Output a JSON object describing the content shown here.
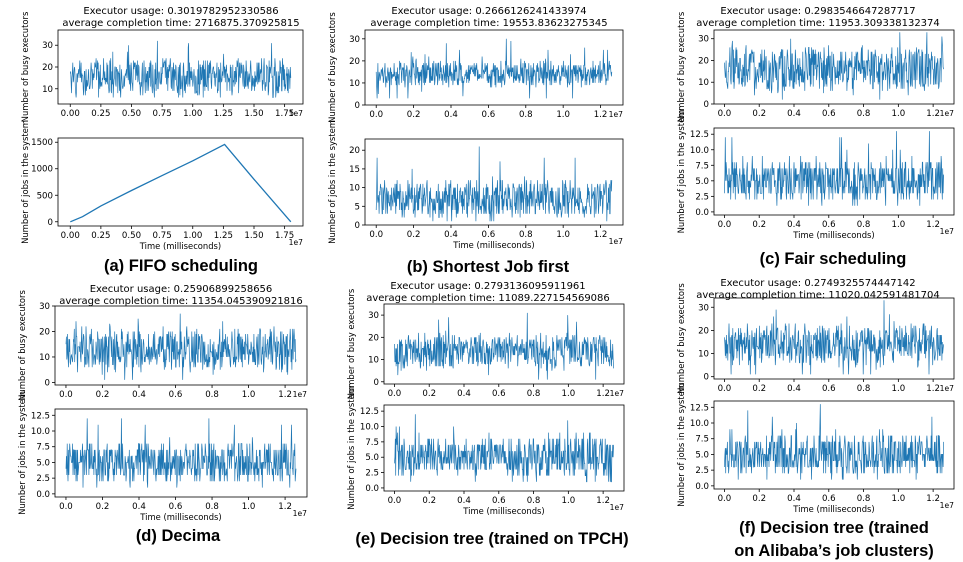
{
  "chart_data": [
    {
      "id": "a",
      "type": "line",
      "caption": "(a) FIFO scheduling",
      "title_line1": "Executor usage: 0.3019782952330586",
      "title_line2": "average completion time: 2716875.370925815",
      "x_multiplier": "1e7",
      "xlim": [
        -0.1,
        1.9
      ],
      "top": {
        "ylabel": "Number of busy executors",
        "ylim": [
          3,
          37
        ],
        "yticks": [
          10,
          20,
          30
        ],
        "xticks": [
          0.0,
          0.25,
          0.5,
          0.75,
          1.0,
          1.25,
          1.5,
          1.75
        ],
        "xtick_labels": [
          "0.00",
          "0.25",
          "0.50",
          "0.75",
          "1.00",
          "1.25",
          "1.50",
          "1.75"
        ],
        "series": [
          {
            "x_range": [
              0.0,
              1.8
            ],
            "mean": 15,
            "spread": 10,
            "min": 6,
            "max": 35
          }
        ]
      },
      "bottom": {
        "ylabel": "Number of jobs in the system",
        "xlabel": "Time (milliseconds)",
        "ylim": [
          -80,
          1580
        ],
        "yticks": [
          0,
          500,
          1000,
          1500
        ],
        "xticks": [
          0.0,
          0.25,
          0.5,
          0.75,
          1.0,
          1.25,
          1.5,
          1.75
        ],
        "xtick_labels": [
          "0.00",
          "0.25",
          "0.50",
          "0.75",
          "1.00",
          "1.25",
          "1.50",
          "1.75"
        ],
        "series": [
          {
            "points": [
              [
                0.0,
                0
              ],
              [
                0.1,
                95
              ],
              [
                0.25,
                300
              ],
              [
                0.5,
                590
              ],
              [
                0.75,
                870
              ],
              [
                1.0,
                1150
              ],
              [
                1.26,
                1460
              ],
              [
                1.5,
                800
              ],
              [
                1.8,
                0
              ]
            ]
          }
        ]
      }
    },
    {
      "id": "b",
      "type": "line",
      "caption": "(b) Shortest Job first",
      "title_line1": "Executor usage: 0.2666126241433974",
      "title_line2": "average completion time: 19553.83623275345",
      "x_multiplier": "1e7",
      "xlim": [
        -0.06,
        1.32
      ],
      "top": {
        "ylabel": "Number of busy executors",
        "ylim": [
          0,
          34
        ],
        "yticks": [
          0,
          10,
          20,
          30
        ],
        "xticks": [
          0.0,
          0.2,
          0.4,
          0.6,
          0.8,
          1.0,
          1.2
        ],
        "xtick_labels": [
          "0.0",
          "0.2",
          "0.4",
          "0.6",
          "0.8",
          "1.0",
          "1.2"
        ],
        "series": [
          {
            "x_range": [
              0.0,
              1.26
            ],
            "mean": 14,
            "spread": 7,
            "min": 3,
            "max": 32
          }
        ]
      },
      "bottom": {
        "ylabel": "Number of jobs in the system",
        "xlabel": "Time (milliseconds)",
        "ylim": [
          0,
          23
        ],
        "yticks": [
          0,
          5,
          10,
          15,
          20
        ],
        "xticks": [
          0.0,
          0.2,
          0.4,
          0.6,
          0.8,
          1.0,
          1.2
        ],
        "xtick_labels": [
          "0.0",
          "0.2",
          "0.4",
          "0.6",
          "0.8",
          "1.0",
          "1.2"
        ],
        "series": [
          {
            "x_range": [
              0.0,
              1.26
            ],
            "mean": 7,
            "spread": 6,
            "min": 1,
            "max": 22
          }
        ]
      }
    },
    {
      "id": "c",
      "type": "line",
      "caption": "(c) Fair scheduling",
      "title_line1": "Executor usage: 0.2983546647287717",
      "title_line2": "average completion time: 11953.309338132374",
      "x_multiplier": "1e7",
      "xlim": [
        -0.06,
        1.32
      ],
      "top": {
        "ylabel": "Number of busy executors",
        "ylim": [
          0,
          34
        ],
        "yticks": [
          0,
          10,
          20,
          30
        ],
        "xticks": [
          0.0,
          0.2,
          0.4,
          0.6,
          0.8,
          1.0,
          1.2
        ],
        "xtick_labels": [
          "0.0",
          "0.2",
          "0.4",
          "0.6",
          "0.8",
          "1.0",
          "1.2"
        ],
        "series": [
          {
            "x_range": [
              0.0,
              1.26
            ],
            "mean": 16,
            "spread": 12,
            "min": 2,
            "max": 33
          }
        ]
      },
      "bottom": {
        "ylabel": "Number of jobs in the system",
        "xlabel": "Time (milliseconds)",
        "ylim": [
          -0.5,
          13.5
        ],
        "yticks": [
          0.0,
          2.5,
          5.0,
          7.5,
          10.0,
          12.5
        ],
        "ytick_labels": [
          "0.0",
          "2.5",
          "5.0",
          "7.5",
          "10.0",
          "12.5"
        ],
        "xticks": [
          0.0,
          0.2,
          0.4,
          0.6,
          0.8,
          1.0,
          1.2
        ],
        "xtick_labels": [
          "0.0",
          "0.2",
          "0.4",
          "0.6",
          "0.8",
          "1.0",
          "1.2"
        ],
        "series": [
          {
            "x_range": [
              0.0,
              1.26
            ],
            "mean": 5,
            "spread": 4,
            "min": 1,
            "max": 13
          }
        ]
      }
    },
    {
      "id": "d",
      "type": "line",
      "caption": "(d) Decima",
      "title_line1": "Executor usage: 0.25906899258656",
      "title_line2": "average completion time: 11354.045390921816",
      "x_multiplier": "1e7",
      "xlim": [
        -0.06,
        1.32
      ],
      "top": {
        "ylabel": "Number of busy executors",
        "ylim": [
          -1,
          30
        ],
        "yticks": [
          0,
          10,
          20,
          30
        ],
        "xticks": [
          0.0,
          0.2,
          0.4,
          0.6,
          0.8,
          1.0,
          1.2
        ],
        "xtick_labels": [
          "0.0",
          "0.2",
          "0.4",
          "0.6",
          "0.8",
          "1.0",
          "1.2"
        ],
        "series": [
          {
            "x_range": [
              0.0,
              1.26
            ],
            "mean": 13,
            "spread": 10,
            "min": 1,
            "max": 29
          }
        ]
      },
      "bottom": {
        "ylabel": "Number of jobs in the system",
        "xlabel": "Time (milliseconds)",
        "ylim": [
          -0.5,
          13.5
        ],
        "yticks": [
          0.0,
          2.5,
          5.0,
          7.5,
          10.0,
          12.5
        ],
        "ytick_labels": [
          "0.0",
          "2.5",
          "5.0",
          "7.5",
          "10.0",
          "12.5"
        ],
        "xticks": [
          0.0,
          0.2,
          0.4,
          0.6,
          0.8,
          1.0,
          1.2
        ],
        "xtick_labels": [
          "0.0",
          "0.2",
          "0.4",
          "0.6",
          "0.8",
          "1.0",
          "1.2"
        ],
        "series": [
          {
            "x_range": [
              0.0,
              1.26
            ],
            "mean": 5,
            "spread": 4,
            "min": 1,
            "max": 13
          }
        ]
      }
    },
    {
      "id": "e",
      "type": "line",
      "caption": "(e) Decision tree (trained on TPCH)",
      "title_line1": "Executor usage: 0.2793136095911961",
      "title_line2": "average completion time: 11089.227154569086",
      "x_multiplier": "1e7",
      "xlim": [
        -0.06,
        1.32
      ],
      "top": {
        "ylabel": "Number of busy executors",
        "ylim": [
          -1,
          35
        ],
        "yticks": [
          0,
          10,
          20,
          30
        ],
        "xticks": [
          0.0,
          0.2,
          0.4,
          0.6,
          0.8,
          1.0,
          1.2
        ],
        "xtick_labels": [
          "0.0",
          "0.2",
          "0.4",
          "0.6",
          "0.8",
          "1.0",
          "1.2"
        ],
        "series": [
          {
            "x_range": [
              0.0,
              1.26
            ],
            "mean": 14,
            "spread": 10,
            "min": 1,
            "max": 33
          }
        ]
      },
      "bottom": {
        "ylabel": "Number of jobs in the system",
        "xlabel": "Time (milliseconds)",
        "ylim": [
          -0.5,
          13.5
        ],
        "yticks": [
          0.0,
          2.5,
          5.0,
          7.5,
          10.0,
          12.5
        ],
        "ytick_labels": [
          "0.0",
          "2.5",
          "5.0",
          "7.5",
          "10.0",
          "12.5"
        ],
        "xticks": [
          0.0,
          0.2,
          0.4,
          0.6,
          0.8,
          1.0,
          1.2
        ],
        "xtick_labels": [
          "0.0",
          "0.2",
          "0.4",
          "0.6",
          "0.8",
          "1.0",
          "1.2"
        ],
        "series": [
          {
            "x_range": [
              0.0,
              1.26
            ],
            "mean": 5,
            "spread": 4,
            "min": 1,
            "max": 13
          }
        ]
      }
    },
    {
      "id": "f",
      "type": "line",
      "caption": "(f) Decision tree (trained on Alibaba’s job clusters)",
      "caption_line1": "(f) Decision tree (trained",
      "caption_line2": "on Alibaba’s job clusters)",
      "title_line1": "Executor usage: 0.2749325574447142",
      "title_line2": "average completion time: 11020.042591481704",
      "x_multiplier": "1e7",
      "xlim": [
        -0.06,
        1.32
      ],
      "top": {
        "ylabel": "Number of busy executors",
        "ylim": [
          -1,
          34
        ],
        "yticks": [
          0,
          10,
          20,
          30
        ],
        "xticks": [
          0.0,
          0.2,
          0.4,
          0.6,
          0.8,
          1.0,
          1.2
        ],
        "xtick_labels": [
          "0.0",
          "0.2",
          "0.4",
          "0.6",
          "0.8",
          "1.0",
          "1.2"
        ],
        "series": [
          {
            "x_range": [
              0.0,
              1.26
            ],
            "mean": 14,
            "spread": 10,
            "min": 1,
            "max": 33
          }
        ]
      },
      "bottom": {
        "ylabel": "Number of jobs in the system",
        "xlabel": "Time (milliseconds)",
        "ylim": [
          -0.5,
          13.5
        ],
        "yticks": [
          0.0,
          2.5,
          5.0,
          7.5,
          10.0,
          12.5
        ],
        "ytick_labels": [
          "0.0",
          "2.5",
          "5.0",
          "7.5",
          "10.0",
          "12.5"
        ],
        "xticks": [
          0.0,
          0.2,
          0.4,
          0.6,
          0.8,
          1.0,
          1.2
        ],
        "xtick_labels": [
          "0.0",
          "0.2",
          "0.4",
          "0.6",
          "0.8",
          "1.0",
          "1.2"
        ],
        "series": [
          {
            "x_range": [
              0.0,
              1.26
            ],
            "mean": 5,
            "spread": 4,
            "min": 1,
            "max": 13
          }
        ]
      }
    }
  ],
  "colors": {
    "line": "#1f77b4",
    "axis": "#000000",
    "background": "#ffffff"
  }
}
